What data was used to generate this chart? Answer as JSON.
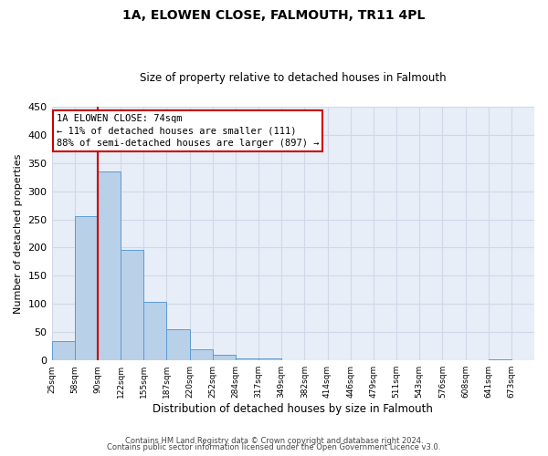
{
  "title": "1A, ELOWEN CLOSE, FALMOUTH, TR11 4PL",
  "subtitle": "Size of property relative to detached houses in Falmouth",
  "xlabel": "Distribution of detached houses by size in Falmouth",
  "ylabel": "Number of detached properties",
  "bar_values": [
    35,
    255,
    335,
    196,
    103,
    56,
    20,
    10,
    4,
    3,
    0,
    1,
    0,
    0,
    0,
    0,
    0,
    0,
    0,
    2,
    0
  ],
  "bin_labels": [
    "25sqm",
    "58sqm",
    "90sqm",
    "122sqm",
    "155sqm",
    "187sqm",
    "220sqm",
    "252sqm",
    "284sqm",
    "317sqm",
    "349sqm",
    "382sqm",
    "414sqm",
    "446sqm",
    "479sqm",
    "511sqm",
    "543sqm",
    "576sqm",
    "608sqm",
    "641sqm",
    "673sqm"
  ],
  "bar_color": "#b8d0e8",
  "bar_edge_color": "#5b9bd5",
  "ylim": [
    0,
    450
  ],
  "yticks": [
    0,
    50,
    100,
    150,
    200,
    250,
    300,
    350,
    400,
    450
  ],
  "vline_x": 1.5,
  "vline_color": "#cc0000",
  "annotation_title": "1A ELOWEN CLOSE: 74sqm",
  "annotation_line1": "← 11% of detached houses are smaller (111)",
  "annotation_line2": "88% of semi-detached houses are larger (897) →",
  "annotation_box_color": "#ffffff",
  "annotation_box_edge": "#cc0000",
  "footer1": "Contains HM Land Registry data © Crown copyright and database right 2024.",
  "footer2": "Contains public sector information licensed under the Open Government Licence v3.0.",
  "background_color": "#e8eef8",
  "grid_color": "#d0d8e8",
  "fig_bg_color": "#ffffff"
}
